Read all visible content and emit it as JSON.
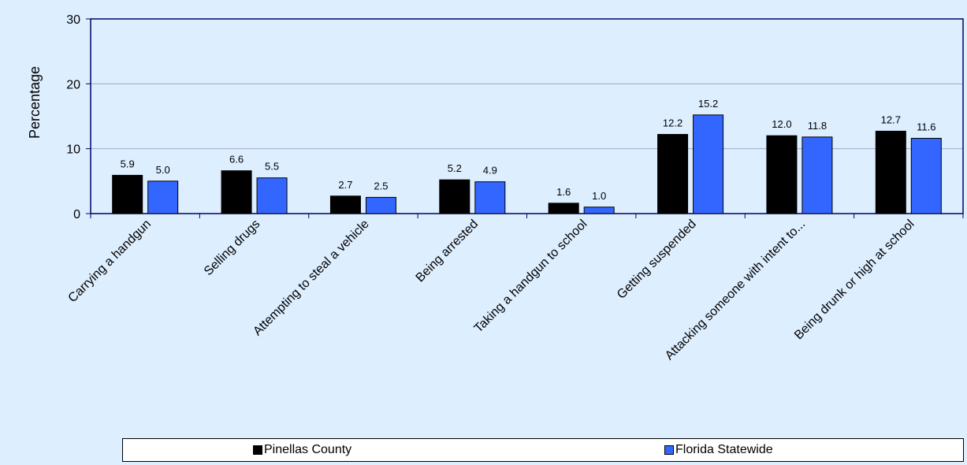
{
  "chart_data": {
    "type": "bar",
    "title": "",
    "xlabel": "",
    "ylabel": "Percentage",
    "ylim": [
      0,
      30
    ],
    "yticks": [
      0,
      10,
      20,
      30
    ],
    "grid": true,
    "legend_position": "bottom",
    "categories": [
      "Carrying a handgun",
      "Selling drugs",
      "Attempting to steal a vehicle",
      "Being arrested",
      "Taking a handgun to school",
      "Getting suspended",
      "Attacking someone with intent to...",
      "Being drunk or high at school"
    ],
    "series": [
      {
        "name": "Pinellas County",
        "color": "#000000",
        "values": [
          5.9,
          6.6,
          2.7,
          5.2,
          1.6,
          12.2,
          12.0,
          12.7
        ]
      },
      {
        "name": "Florida Statewide",
        "color": "#3366FF",
        "values": [
          5.0,
          5.5,
          2.5,
          4.9,
          1.0,
          15.2,
          11.8,
          11.6
        ]
      }
    ]
  },
  "colors": {
    "background": "#DDEEFF",
    "axis": "#000066",
    "grid": "#A0A8C8"
  }
}
